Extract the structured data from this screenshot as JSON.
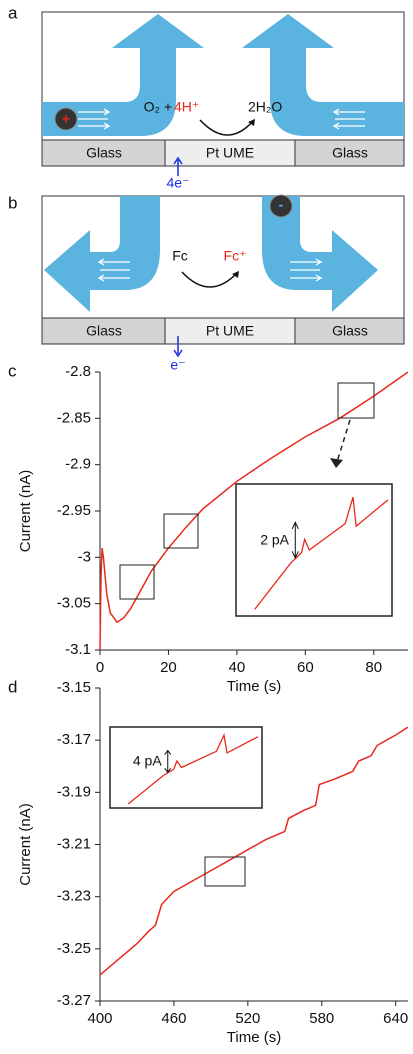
{
  "panels": {
    "a": {
      "letter": "a",
      "glass_left": "Glass",
      "electrode": "Pt UME",
      "glass_right": "Glass",
      "reactant": "O₂ + ",
      "proton": "4H⁺",
      "product": "2H₂O",
      "electrons": "4e⁻",
      "ion": "+"
    },
    "b": {
      "letter": "b",
      "glass_left": "Glass",
      "electrode": "Pt UME",
      "glass_right": "Glass",
      "reactant": "Fc",
      "product": "Fc⁺",
      "electrons": "e⁻",
      "ion": "-"
    }
  },
  "chart_data": [
    {
      "type": "line",
      "letter": "c",
      "xlabel": "Time (s)",
      "ylabel": "Current (nA)",
      "color": "#e8291c",
      "x": [
        0,
        0.3,
        0.6,
        1,
        2,
        3,
        5,
        7,
        9,
        12,
        15,
        20,
        25,
        30,
        40,
        50,
        60,
        70,
        80,
        90
      ],
      "values": [
        -3.1,
        -3.02,
        -2.99,
        -3.0,
        -3.04,
        -3.06,
        -3.07,
        -3.065,
        -3.055,
        -3.035,
        -3.015,
        -2.99,
        -2.968,
        -2.948,
        -2.918,
        -2.893,
        -2.87,
        -2.85,
        -2.826,
        -2.8
      ],
      "xlim": [
        0,
        90
      ],
      "xticks": [
        0,
        20,
        40,
        60,
        80
      ],
      "ylim": [
        -3.1,
        -2.8
      ],
      "yticks": [
        -3.1,
        -3.05,
        -3,
        -2.95,
        -2.9,
        -2.85,
        -2.8
      ],
      "inset_label": "2 pA"
    },
    {
      "type": "line",
      "letter": "d",
      "xlabel": "Time (s)",
      "ylabel": "Current (nA)",
      "color": "#e8291c",
      "x": [
        400,
        415,
        430,
        440,
        445,
        450,
        460,
        475,
        490,
        505,
        520,
        535,
        550,
        553,
        565,
        575,
        578,
        590,
        605,
        610,
        620,
        625,
        640,
        650
      ],
      "values": [
        -3.26,
        -3.254,
        -3.248,
        -3.243,
        -3.241,
        -3.233,
        -3.228,
        -3.224,
        -3.22,
        -3.216,
        -3.212,
        -3.208,
        -3.205,
        -3.2,
        -3.197,
        -3.195,
        -3.187,
        -3.185,
        -3.182,
        -3.178,
        -3.176,
        -3.172,
        -3.168,
        -3.165
      ],
      "xlim": [
        400,
        650
      ],
      "xticks": [
        400,
        460,
        520,
        580,
        640
      ],
      "ylim": [
        -3.27,
        -3.15
      ],
      "yticks": [
        -3.27,
        -3.25,
        -3.23,
        -3.21,
        -3.19,
        -3.17,
        -3.15
      ],
      "inset_label": "4 pA"
    }
  ]
}
